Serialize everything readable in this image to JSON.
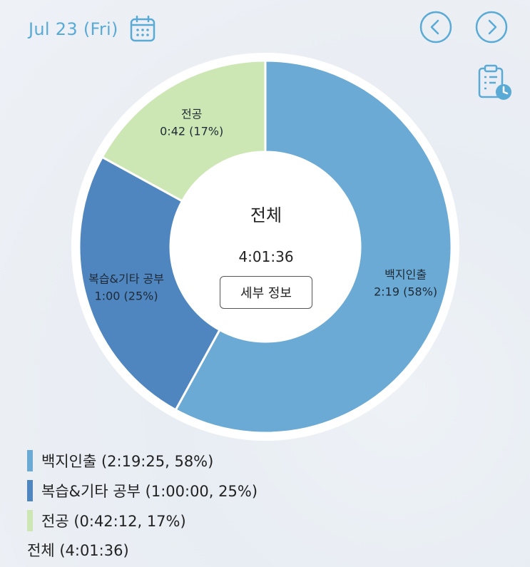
{
  "header": {
    "date": "Jul 23 (Fri)",
    "calendar_icon": "calendar-icon",
    "prev_icon": "chevron-left-icon",
    "next_icon": "chevron-right-icon",
    "record_icon": "clipboard-clock-icon"
  },
  "center": {
    "title": "전체",
    "total": "4:01:36",
    "detail_button": "세부 정보"
  },
  "chart_data": {
    "type": "pie",
    "donut": true,
    "categories": [
      "백지인출",
      "복습&기타 공부",
      "전공"
    ],
    "values": [
      58,
      25,
      17
    ],
    "durations": [
      "2:19",
      "1:00",
      "0:42"
    ],
    "percent_labels": [
      "(58%)",
      "(25%)",
      "(17%)"
    ],
    "colors": [
      "#6aaad4",
      "#4f86c0",
      "#cde7b4"
    ]
  },
  "legend": {
    "items": [
      {
        "label": "백지인출 (2:19:25, 58%)",
        "color": "#6aaad4"
      },
      {
        "label": "복습&기타 공부 (1:00:00, 25%)",
        "color": "#4f86c0"
      },
      {
        "label": "전공 (0:42:12, 17%)",
        "color": "#cde7b4"
      }
    ],
    "total": "전체 (4:01:36)"
  }
}
